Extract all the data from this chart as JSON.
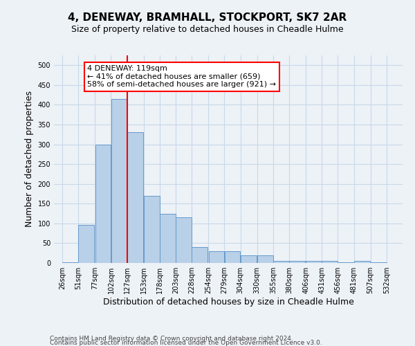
{
  "title": "4, DENEWAY, BRAMHALL, STOCKPORT, SK7 2AR",
  "subtitle": "Size of property relative to detached houses in Cheadle Hulme",
  "xlabel": "Distribution of detached houses by size in Cheadle Hulme",
  "ylabel": "Number of detached properties",
  "bar_left_edges": [
    26,
    51,
    77,
    102,
    127,
    153,
    178,
    203,
    228,
    254,
    279,
    304,
    330,
    355,
    380,
    406,
    431,
    456,
    481,
    507
  ],
  "bar_heights": [
    2,
    97,
    300,
    415,
    330,
    170,
    125,
    115,
    40,
    30,
    30,
    20,
    20,
    5,
    5,
    5,
    5,
    2,
    5,
    2
  ],
  "bin_width": 25,
  "bar_color": "#b8d0e8",
  "bar_edge_color": "#6699cc",
  "grid_color": "#c8d8e8",
  "property_line_x": 127,
  "property_line_color": "red",
  "annotation_text": "4 DENEWAY: 119sqm\n← 41% of detached houses are smaller (659)\n58% of semi-detached houses are larger (921) →",
  "annotation_box_color": "white",
  "annotation_box_edge": "red",
  "ylim": [
    0,
    525
  ],
  "yticks": [
    0,
    50,
    100,
    150,
    200,
    250,
    300,
    350,
    400,
    450,
    500
  ],
  "x_tick_labels": [
    "26sqm",
    "51sqm",
    "77sqm",
    "102sqm",
    "127sqm",
    "153sqm",
    "178sqm",
    "203sqm",
    "228sqm",
    "254sqm",
    "279sqm",
    "304sqm",
    "330sqm",
    "355sqm",
    "380sqm",
    "406sqm",
    "431sqm",
    "456sqm",
    "481sqm",
    "507sqm",
    "532sqm"
  ],
  "x_tick_positions": [
    26,
    51,
    77,
    102,
    127,
    153,
    178,
    203,
    228,
    254,
    279,
    304,
    330,
    355,
    380,
    406,
    431,
    456,
    481,
    507,
    532
  ],
  "footer_line1": "Contains HM Land Registry data © Crown copyright and database right 2024.",
  "footer_line2": "Contains public sector information licensed under the Open Government Licence v3.0.",
  "background_color": "#edf2f7",
  "plot_bg_color": "#edf2f7",
  "title_fontsize": 11,
  "subtitle_fontsize": 9,
  "ylabel_fontsize": 9,
  "xlabel_fontsize": 9,
  "tick_fontsize": 7,
  "footer_fontsize": 6.5,
  "annotation_fontsize": 8
}
